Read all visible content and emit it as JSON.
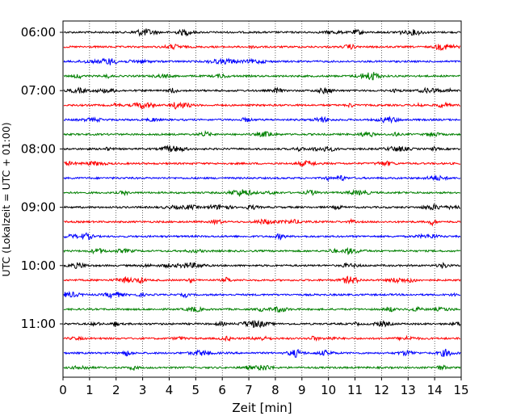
{
  "chart_data": {
    "type": "line",
    "subtype": "helicorder",
    "xlabel": "Zeit  [min]",
    "ylabel": "UTC (Lokalzeit = UTC + 01:00)",
    "xlim": [
      0,
      15
    ],
    "x_ticks": [
      "0",
      "1",
      "2",
      "3",
      "4",
      "5",
      "6",
      "7",
      "8",
      "9",
      "10",
      "11",
      "12",
      "13",
      "14",
      "15"
    ],
    "y_tick_labels": [
      "06:00",
      "07:00",
      "08:00",
      "09:00",
      "10:00",
      "11:00"
    ],
    "y_ticks_at_hour_rows": [
      0,
      4,
      8,
      12,
      16,
      20
    ],
    "grid": "vertical dotted lines at each minute",
    "minutes_per_row": 15,
    "color_cycle": [
      "#000000",
      "#ff0000",
      "#0000ff",
      "#008000"
    ],
    "rows": [
      {
        "start": "06:00",
        "color": "#000000"
      },
      {
        "start": "06:15",
        "color": "#ff0000"
      },
      {
        "start": "06:30",
        "color": "#0000ff"
      },
      {
        "start": "06:45",
        "color": "#008000"
      },
      {
        "start": "07:00",
        "color": "#000000"
      },
      {
        "start": "07:15",
        "color": "#ff0000"
      },
      {
        "start": "07:30",
        "color": "#0000ff"
      },
      {
        "start": "07:45",
        "color": "#008000"
      },
      {
        "start": "08:00",
        "color": "#000000"
      },
      {
        "start": "08:15",
        "color": "#ff0000"
      },
      {
        "start": "08:30",
        "color": "#0000ff"
      },
      {
        "start": "08:45",
        "color": "#008000"
      },
      {
        "start": "09:00",
        "color": "#000000"
      },
      {
        "start": "09:15",
        "color": "#ff0000"
      },
      {
        "start": "09:30",
        "color": "#0000ff"
      },
      {
        "start": "09:45",
        "color": "#008000"
      },
      {
        "start": "10:00",
        "color": "#000000"
      },
      {
        "start": "10:15",
        "color": "#ff0000"
      },
      {
        "start": "10:30",
        "color": "#0000ff"
      },
      {
        "start": "10:45",
        "color": "#008000"
      },
      {
        "start": "11:00",
        "color": "#000000"
      },
      {
        "start": "11:15",
        "color": "#ff0000"
      },
      {
        "start": "11:30",
        "color": "#0000ff"
      },
      {
        "start": "11:45",
        "color": "#008000"
      }
    ]
  }
}
